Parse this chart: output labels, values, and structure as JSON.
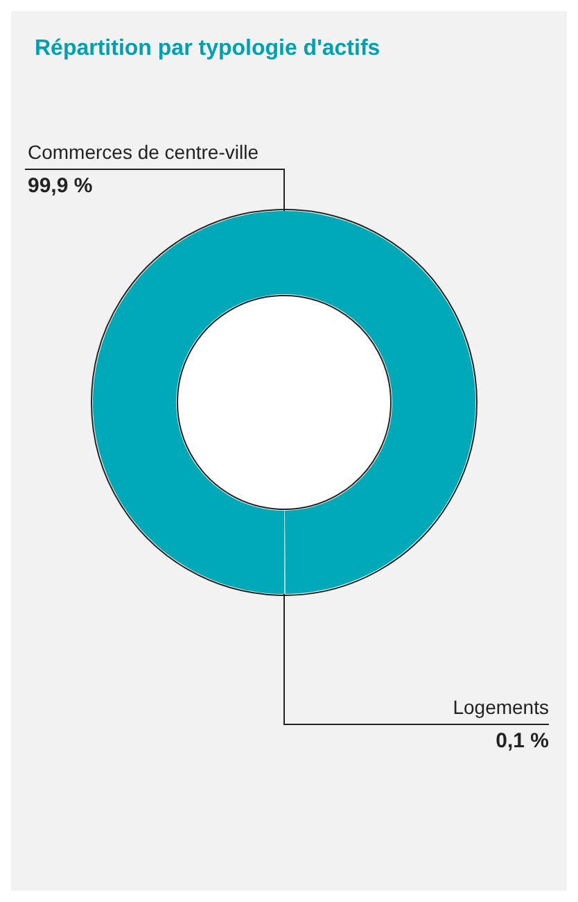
{
  "chart_data": {
    "type": "donut",
    "title": "Répartition par typologie d'actifs",
    "categories": [
      "Commerces de centre-ville",
      "Logements"
    ],
    "values": [
      99.9,
      0.1
    ],
    "colors": [
      "#00a9b7",
      "#a9dde3"
    ],
    "value_labels": [
      "99,9 %",
      "0,1 %"
    ]
  }
}
